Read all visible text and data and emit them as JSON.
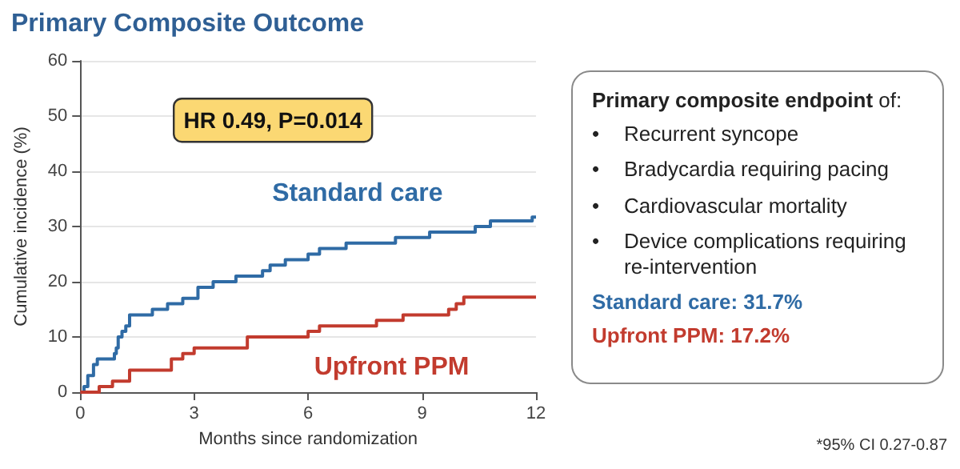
{
  "chart_data": [
    {
      "type": "step",
      "title": "Primary Composite Outcome",
      "xlabel": "Months since randomization",
      "ylabel": "Cumulative incidence (%)",
      "annotations": [
        "HR 0.49, P=0.014",
        "*95% CI 0.27-0.87"
      ],
      "xlim": [
        0,
        12
      ],
      "xticks": [
        0,
        3,
        6,
        9,
        12
      ],
      "ylim": [
        0,
        60
      ],
      "yticks": [
        0,
        10,
        20,
        30,
        40,
        50,
        60
      ],
      "grid": "y",
      "legend": false,
      "marker": "none",
      "line_style": "solid",
      "series": [
        {
          "name": "Standard care",
          "color": "#2f6ba5",
          "x": [
            0,
            0.1,
            0.2,
            0.35,
            0.45,
            0.9,
            0.95,
            1.0,
            1.1,
            1.2,
            1.3,
            1.9,
            2.3,
            2.7,
            3.1,
            3.5,
            4.1,
            4.8,
            5.0,
            5.4,
            6.0,
            6.3,
            7.0,
            8.3,
            9.2,
            10.4,
            10.8,
            11.9,
            12
          ],
          "values": [
            0,
            1,
            3,
            5,
            6,
            7,
            8,
            10,
            11,
            12,
            14,
            15,
            16,
            17,
            19,
            20,
            21,
            22,
            23,
            24,
            25,
            26,
            27,
            28,
            29,
            30,
            31,
            31.7,
            31.7
          ]
        },
        {
          "name": "Upfront PPM",
          "color": "#c23b2e",
          "x": [
            0,
            0.5,
            0.85,
            1.3,
            2.4,
            2.7,
            3.0,
            4.4,
            6.0,
            6.3,
            7.8,
            8.5,
            9.7,
            9.9,
            10.1,
            12
          ],
          "values": [
            0,
            1,
            2,
            4,
            6,
            7,
            8,
            10,
            11,
            12,
            13,
            14,
            15,
            16,
            17.2,
            17.2
          ]
        }
      ]
    },
    {
      "type": "other",
      "title": "Primary composite endpoint of:",
      "annotations": [
        "•\tRecurrent syncope",
        "•\tBradycardia requiring pacing",
        "•\tCardiovascular mortality",
        "•\tDevice complications requiring re-intervention"
      ],
      "series": [
        {
          "name": "Standard care: 31.7%",
          "color": "#2f6ba5"
        },
        {
          "name": "Upfront PPM: 17.2%",
          "color": "#c23b2e"
        }
      ]
    }
  ]
}
